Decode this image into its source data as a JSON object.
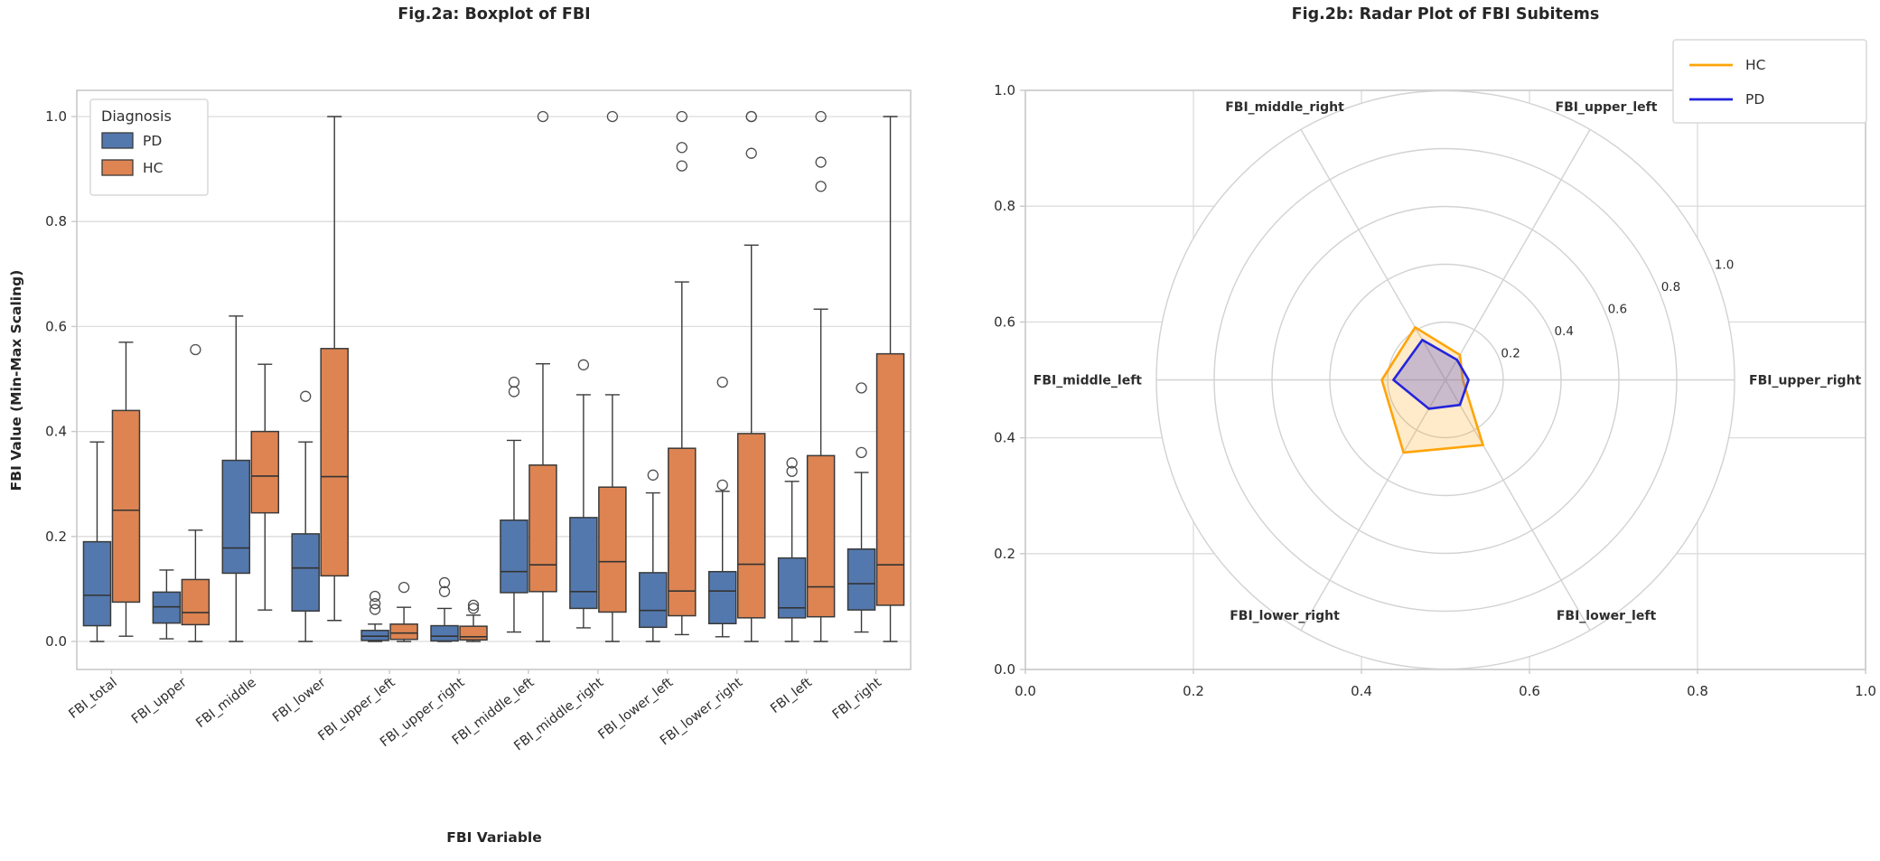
{
  "figure": {
    "background": "#ffffff",
    "text_color": "#262626",
    "grid_color": "#dcdcdc",
    "spine_color": "#c9c9c9"
  },
  "chart_data": [
    {
      "type": "box",
      "title": "Fig.2a: Boxplot of FBI",
      "xlabel": "FBI Variable",
      "ylabel": "FBI Value (Min-Max Scaling)",
      "ylim": [
        0.0,
        1.0
      ],
      "y_ticks": [
        "0.0",
        "0.2",
        "0.4",
        "0.6",
        "0.8",
        "1.0"
      ],
      "grid": "horizontal",
      "legend": {
        "title": "Diagnosis",
        "entries": [
          {
            "label": "PD",
            "color": "#5378ae"
          },
          {
            "label": "HC",
            "color": "#dd8452"
          }
        ]
      },
      "categories": [
        "FBI_total",
        "FBI_upper",
        "FBI_middle",
        "FBI_lower",
        "FBI_upper_left",
        "FBI_upper_right",
        "FBI_middle_left",
        "FBI_middle_right",
        "FBI_lower_left",
        "FBI_lower_right",
        "FBI_left",
        "FBI_right"
      ],
      "series": [
        {
          "name": "PD",
          "color": "#5378ae",
          "boxes": [
            {
              "whislo": 0.0,
              "q1": 0.03,
              "med": 0.088,
              "q3": 0.19,
              "whishi": 0.38,
              "outliers": []
            },
            {
              "whislo": 0.005,
              "q1": 0.035,
              "med": 0.066,
              "q3": 0.094,
              "whishi": 0.136,
              "outliers": []
            },
            {
              "whislo": 0.0,
              "q1": 0.13,
              "med": 0.178,
              "q3": 0.345,
              "whishi": 0.62,
              "outliers": []
            },
            {
              "whislo": 0.0,
              "q1": 0.058,
              "med": 0.14,
              "q3": 0.205,
              "whishi": 0.38,
              "outliers": [
                0.467
              ]
            },
            {
              "whislo": 0.0,
              "q1": 0.002,
              "med": 0.01,
              "q3": 0.021,
              "whishi": 0.033,
              "outliers": [
                0.061,
                0.072,
                0.086
              ]
            },
            {
              "whislo": 0.0,
              "q1": 0.001,
              "med": 0.01,
              "q3": 0.03,
              "whishi": 0.063,
              "outliers": [
                0.095,
                0.112
              ]
            },
            {
              "whislo": 0.018,
              "q1": 0.093,
              "med": 0.133,
              "q3": 0.231,
              "whishi": 0.383,
              "outliers": [
                0.476,
                0.494
              ]
            },
            {
              "whislo": 0.026,
              "q1": 0.063,
              "med": 0.095,
              "q3": 0.236,
              "whishi": 0.47,
              "outliers": [
                0.527
              ]
            },
            {
              "whislo": 0.0,
              "q1": 0.027,
              "med": 0.059,
              "q3": 0.131,
              "whishi": 0.283,
              "outliers": [
                0.317
              ]
            },
            {
              "whislo": 0.009,
              "q1": 0.034,
              "med": 0.096,
              "q3": 0.133,
              "whishi": 0.286,
              "outliers": [
                0.298,
                0.494
              ]
            },
            {
              "whislo": 0.0,
              "q1": 0.045,
              "med": 0.064,
              "q3": 0.159,
              "whishi": 0.305,
              "outliers": [
                0.324,
                0.34
              ]
            },
            {
              "whislo": 0.018,
              "q1": 0.06,
              "med": 0.11,
              "q3": 0.176,
              "whishi": 0.322,
              "outliers": [
                0.36,
                0.483
              ]
            }
          ]
        },
        {
          "name": "HC",
          "color": "#dd8452",
          "boxes": [
            {
              "whislo": 0.01,
              "q1": 0.075,
              "med": 0.25,
              "q3": 0.44,
              "whishi": 0.57,
              "outliers": []
            },
            {
              "whislo": 0.0,
              "q1": 0.032,
              "med": 0.055,
              "q3": 0.118,
              "whishi": 0.212,
              "outliers": [
                0.556
              ]
            },
            {
              "whislo": 0.06,
              "q1": 0.245,
              "med": 0.315,
              "q3": 0.4,
              "whishi": 0.528,
              "outliers": []
            },
            {
              "whislo": 0.04,
              "q1": 0.125,
              "med": 0.314,
              "q3": 0.558,
              "whishi": 1.0,
              "outliers": []
            },
            {
              "whislo": 0.0,
              "q1": 0.004,
              "med": 0.016,
              "q3": 0.033,
              "whishi": 0.065,
              "outliers": [
                0.103
              ]
            },
            {
              "whislo": 0.0,
              "q1": 0.003,
              "med": 0.009,
              "q3": 0.029,
              "whishi": 0.05,
              "outliers": [
                0.063,
                0.069
              ]
            },
            {
              "whislo": 0.0,
              "q1": 0.095,
              "med": 0.146,
              "q3": 0.336,
              "whishi": 0.529,
              "outliers": [
                1.0
              ]
            },
            {
              "whislo": 0.0,
              "q1": 0.056,
              "med": 0.152,
              "q3": 0.294,
              "whishi": 0.47,
              "outliers": [
                1.0
              ]
            },
            {
              "whislo": 0.013,
              "q1": 0.049,
              "med": 0.096,
              "q3": 0.368,
              "whishi": 0.685,
              "outliers": [
                0.906,
                0.941,
                1.0
              ]
            },
            {
              "whislo": 0.0,
              "q1": 0.045,
              "med": 0.147,
              "q3": 0.396,
              "whishi": 0.755,
              "outliers": [
                0.93,
                1.0,
                1.0
              ]
            },
            {
              "whislo": 0.0,
              "q1": 0.047,
              "med": 0.104,
              "q3": 0.354,
              "whishi": 0.633,
              "outliers": [
                0.867,
                0.913,
                1.0
              ]
            },
            {
              "whislo": 0.0,
              "q1": 0.069,
              "med": 0.146,
              "q3": 0.548,
              "whishi": 1.0,
              "outliers": []
            }
          ]
        }
      ]
    },
    {
      "type": "radar",
      "title": "Fig.2b: Radar Plot of FBI Subitems",
      "axes": [
        "FBI_upper_right",
        "FBI_upper_left",
        "FBI_middle_right",
        "FBI_middle_left",
        "FBI_lower_right",
        "FBI_lower_left"
      ],
      "angles_deg": [
        0,
        60,
        120,
        180,
        240,
        300
      ],
      "r_ticks": [
        0.2,
        0.4,
        0.6,
        0.8,
        1.0
      ],
      "r_tick_labels": [
        "0.2",
        "0.4",
        "0.6",
        "0.8",
        "1.0"
      ],
      "outer_x_ticks": [
        "0.0",
        "0.2",
        "0.4",
        "0.6",
        "0.8",
        "1.0"
      ],
      "outer_y_ticks": [
        "0.0",
        "0.2",
        "0.4",
        "0.6",
        "0.8",
        "1.0"
      ],
      "legend": {
        "entries": [
          {
            "label": "HC",
            "color": "#ffa408"
          },
          {
            "label": "PD",
            "color": "#2424dd"
          }
        ]
      },
      "series": [
        {
          "name": "HC",
          "color": "#ffa408",
          "fill": "rgba(255,166,8,0.22)",
          "values": [
            0.06,
            0.1,
            0.21,
            0.22,
            0.29,
            0.26
          ]
        },
        {
          "name": "PD",
          "color": "#2424dd",
          "fill": "rgba(86,86,208,0.32)",
          "values": [
            0.08,
            0.08,
            0.16,
            0.18,
            0.115,
            0.1
          ]
        }
      ]
    }
  ]
}
